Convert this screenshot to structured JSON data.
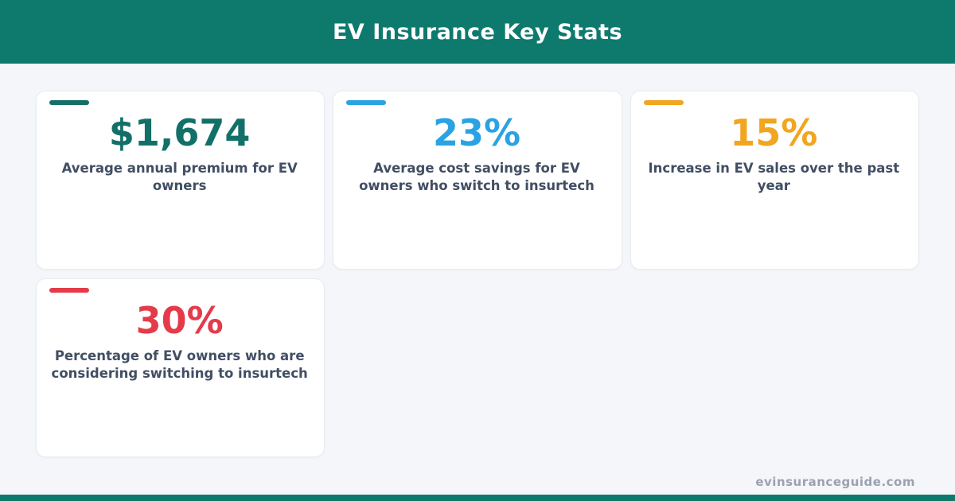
{
  "header": {
    "title": "EV Insurance Key Stats",
    "bg_color": "#0e7a6e"
  },
  "stats": [
    {
      "value": "$1,674",
      "label": "Average annual premium for EV owners",
      "color": "#137068"
    },
    {
      "value": "23%",
      "label": "Average cost savings for EV owners who switch to insurtech",
      "color": "#29a3e3"
    },
    {
      "value": "15%",
      "label": "Increase in EV sales over the past year",
      "color": "#f2a51f"
    },
    {
      "value": "30%",
      "label": "Percentage of EV owners who are considering switching to insurtech",
      "color": "#e43b4a"
    }
  ],
  "footer": {
    "website": "evinsuranceguide.com",
    "bar_color": "#0e7a6e"
  },
  "chart_data": {
    "type": "table",
    "title": "EV Insurance Key Stats",
    "categories": [
      "Average annual premium for EV owners",
      "Average cost savings for EV owners who switch to insurtech",
      "Increase in EV sales over the past year",
      "Percentage of EV owners who are considering switching to insurtech"
    ],
    "values": [
      1674,
      23,
      15,
      30
    ],
    "units": [
      "USD",
      "percent",
      "percent",
      "percent"
    ],
    "display_values": [
      "$1,674",
      "23%",
      "15%",
      "30%"
    ]
  }
}
